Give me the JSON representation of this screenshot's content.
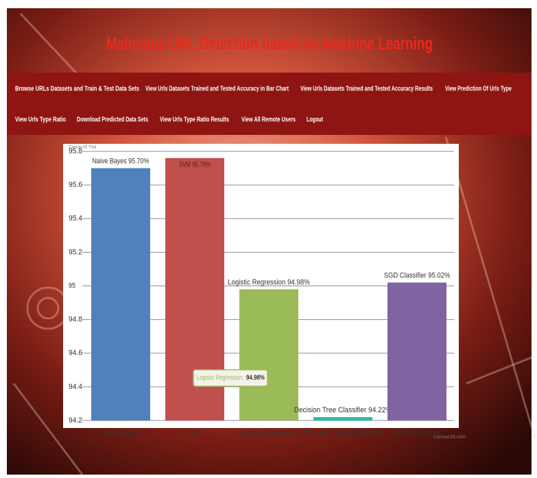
{
  "header": {
    "title": "Malicious URL Detection based on Machine Learning"
  },
  "nav": {
    "links": [
      "Browse URLs Datasets and Train & Test Data Sets",
      "View Urls Datasets Trained and Tested Accuracy in Bar Chart",
      "View Urls Datasets Trained and Tested Accuracy Results",
      "View Prediction Of Urls Type",
      "View Urls Type Ratio",
      "Download Predicted Data Sets",
      "View Urls Type Ratio Results",
      "View All Remote Users",
      "Logout"
    ]
  },
  "chart_data": {
    "type": "bar",
    "categories": [
      "Naive Bayes",
      "SVM",
      "Logistic Regression",
      "Decision Tree Classifier",
      "SGD Classifier"
    ],
    "values": [
      95.7,
      95.76,
      94.98,
      94.22,
      95.02
    ],
    "value_labels": [
      "Naive Bayes 95.70%",
      "SVM 95.76%",
      "Logistic Regression 94.98%",
      "Decision Tree Classifier 94.22%",
      "SGD Classifier 95.02%"
    ],
    "colors": [
      "#4f81bc",
      "#c0504e",
      "#9bbb58",
      "#23bfaa",
      "#8064a1"
    ],
    "ylim": [
      94.2,
      95.8
    ],
    "yticks": [
      94.2,
      94.4,
      94.6,
      94.8,
      95,
      95.2,
      95.4,
      95.6,
      95.8
    ],
    "grid": true,
    "tooltip": {
      "label": "Logistic Regression:",
      "value": "94.98%"
    },
    "watermark": "CanvasJS Trial",
    "credit": "CanvasJS.com"
  }
}
